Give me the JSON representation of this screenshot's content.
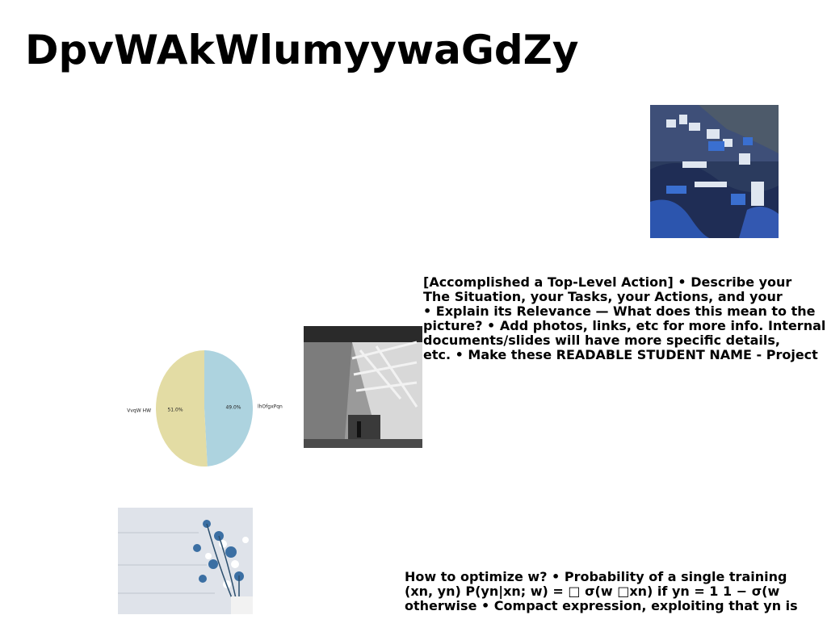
{
  "slide": {
    "title": "DpvWAkWlumyywaGdZy",
    "paragraph1": [
      "[Accomplished a Top-Level Action] • Describe your",
      "The Situation, your Tasks, your Actions, and your",
      "• Explain its Relevance — What does this mean to the",
      "picture? • Add photos, links, etc for more info. Internal",
      "documents/slides will have more specific details,",
      "etc. • Make these READABLE STUDENT NAME - Project"
    ],
    "paragraph2": [
      "How to optimize w? • Probability of a single training",
      "(xn, yn) P(yn|xn; w) = □ σ(w □xn) if yn = 1 1 − σ(w",
      "otherwise • Compact expression, exploiting that yn is"
    ],
    "images": {
      "harbor": "harbor-village-photo",
      "interior": "timber-interior-photo",
      "flowers": "flower-vase-photo"
    }
  },
  "chart_data": {
    "type": "pie",
    "labels": [
      "VvqW HW",
      "lhOfgxPqn"
    ],
    "values": [
      51.0,
      49.0
    ],
    "value_labels": [
      "51.0%",
      "49.0%"
    ],
    "colors": [
      "#e3dca4",
      "#add3df"
    ]
  }
}
